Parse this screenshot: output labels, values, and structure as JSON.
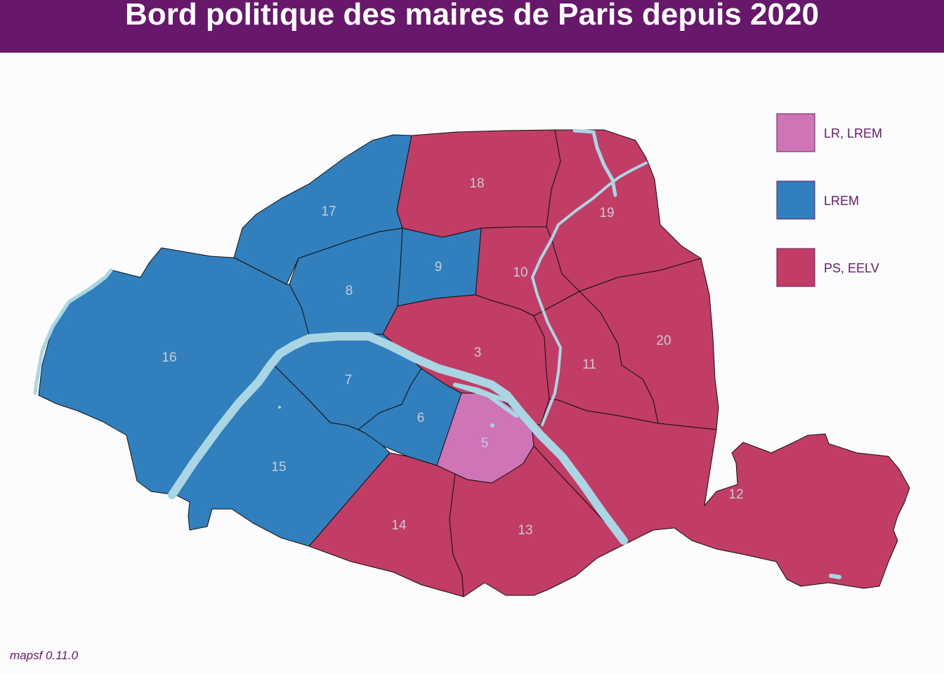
{
  "title": "Bord politique des maires de Paris depuis 2020",
  "credit": "mapsf 0.11.0",
  "colors": {
    "title_bar": "#68186a",
    "LR, LREM": "#cf74b7",
    "LREM": "#3180bd",
    "PS, EELV": "#c13d66",
    "seine": "#a9d6e2",
    "labels": "#c9c9d6"
  },
  "legend": [
    {
      "label": "LR, LREM",
      "color": "#cf74b7"
    },
    {
      "label": "LREM",
      "color": "#3180bd"
    },
    {
      "label": "PS, EELV",
      "color": "#c13d66"
    }
  ],
  "arrondissements": [
    {
      "id": "3",
      "label": "3",
      "party": "PS, EELV"
    },
    {
      "id": "5",
      "label": "5",
      "party": "LR, LREM"
    },
    {
      "id": "6",
      "label": "6",
      "party": "LREM"
    },
    {
      "id": "7",
      "label": "7",
      "party": "LREM"
    },
    {
      "id": "8",
      "label": "8",
      "party": "LREM"
    },
    {
      "id": "9",
      "label": "9",
      "party": "LREM"
    },
    {
      "id": "10",
      "label": "10",
      "party": "PS, EELV"
    },
    {
      "id": "11",
      "label": "11",
      "party": "PS, EELV"
    },
    {
      "id": "12",
      "label": "12",
      "party": "PS, EELV"
    },
    {
      "id": "13",
      "label": "13",
      "party": "PS, EELV"
    },
    {
      "id": "14",
      "label": "14",
      "party": "PS, EELV"
    },
    {
      "id": "15",
      "label": "15",
      "party": "LREM"
    },
    {
      "id": "16",
      "label": "16",
      "party": "LREM"
    },
    {
      "id": "17",
      "label": "17",
      "party": "LREM"
    },
    {
      "id": "18",
      "label": "18",
      "party": "PS, EELV"
    },
    {
      "id": "19",
      "label": "19",
      "party": "PS, EELV"
    },
    {
      "id": "20",
      "label": "20",
      "party": "PS, EELV"
    }
  ]
}
